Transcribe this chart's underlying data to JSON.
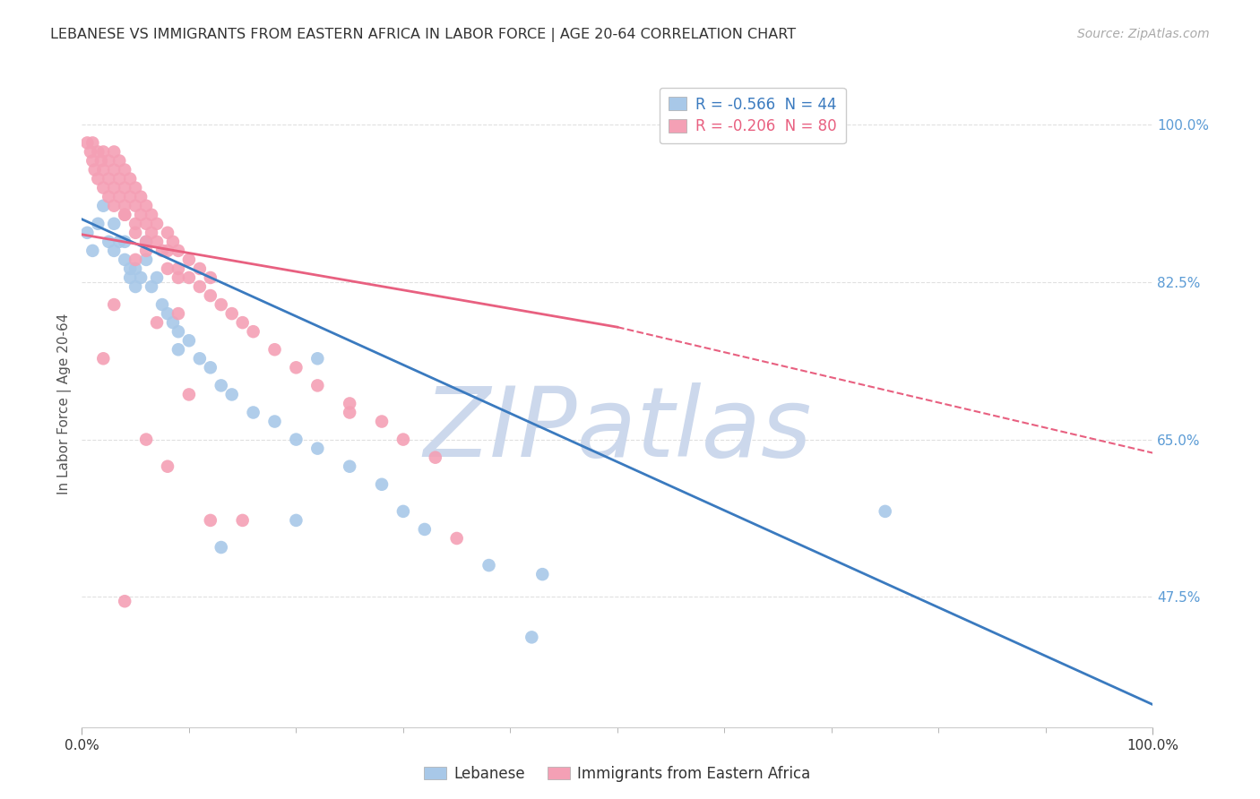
{
  "title": "LEBANESE VS IMMIGRANTS FROM EASTERN AFRICA IN LABOR FORCE | AGE 20-64 CORRELATION CHART",
  "source": "Source: ZipAtlas.com",
  "ylabel": "In Labor Force | Age 20-64",
  "x_range": [
    0.0,
    1.0
  ],
  "y_range": [
    0.33,
    1.05
  ],
  "y_ticks": [
    0.475,
    0.65,
    0.825,
    1.0
  ],
  "y_tick_labels": [
    "47.5%",
    "65.0%",
    "82.5%",
    "100.0%"
  ],
  "x_ticks": [
    0.0,
    1.0
  ],
  "x_tick_labels": [
    "0.0%",
    "100.0%"
  ],
  "series": [
    {
      "name": "Lebanese",
      "color": "#a8c8e8",
      "R": -0.566,
      "N": 44,
      "x": [
        0.005,
        0.01,
        0.015,
        0.02,
        0.025,
        0.03,
        0.03,
        0.035,
        0.04,
        0.04,
        0.045,
        0.045,
        0.05,
        0.05,
        0.055,
        0.06,
        0.06,
        0.065,
        0.07,
        0.075,
        0.08,
        0.085,
        0.09,
        0.09,
        0.1,
        0.11,
        0.12,
        0.13,
        0.14,
        0.16,
        0.18,
        0.2,
        0.22,
        0.25,
        0.28,
        0.3,
        0.32,
        0.22,
        0.38,
        0.43,
        0.13,
        0.2,
        0.75,
        0.42
      ],
      "y": [
        0.88,
        0.86,
        0.89,
        0.91,
        0.87,
        0.89,
        0.86,
        0.87,
        0.87,
        0.85,
        0.84,
        0.83,
        0.84,
        0.82,
        0.83,
        0.87,
        0.85,
        0.82,
        0.83,
        0.8,
        0.79,
        0.78,
        0.77,
        0.75,
        0.76,
        0.74,
        0.73,
        0.71,
        0.7,
        0.68,
        0.67,
        0.65,
        0.64,
        0.62,
        0.6,
        0.57,
        0.55,
        0.74,
        0.51,
        0.5,
        0.53,
        0.56,
        0.57,
        0.43
      ]
    },
    {
      "name": "Immigrants from Eastern Africa",
      "color": "#f4a0b5",
      "R": -0.206,
      "N": 80,
      "x": [
        0.005,
        0.008,
        0.01,
        0.01,
        0.012,
        0.015,
        0.015,
        0.018,
        0.02,
        0.02,
        0.02,
        0.025,
        0.025,
        0.025,
        0.03,
        0.03,
        0.03,
        0.03,
        0.035,
        0.035,
        0.035,
        0.04,
        0.04,
        0.04,
        0.04,
        0.045,
        0.045,
        0.05,
        0.05,
        0.05,
        0.05,
        0.055,
        0.055,
        0.06,
        0.06,
        0.06,
        0.065,
        0.065,
        0.07,
        0.07,
        0.075,
        0.08,
        0.08,
        0.08,
        0.085,
        0.09,
        0.09,
        0.09,
        0.1,
        0.1,
        0.11,
        0.11,
        0.12,
        0.12,
        0.13,
        0.14,
        0.15,
        0.16,
        0.18,
        0.2,
        0.22,
        0.25,
        0.28,
        0.3,
        0.33,
        0.08,
        0.06,
        0.12,
        0.25,
        0.35,
        0.04,
        0.03,
        0.02,
        0.05,
        0.07,
        0.1,
        0.15,
        0.04,
        0.09,
        0.06
      ],
      "y": [
        0.98,
        0.97,
        0.96,
        0.98,
        0.95,
        0.97,
        0.94,
        0.96,
        0.97,
        0.95,
        0.93,
        0.96,
        0.94,
        0.92,
        0.97,
        0.95,
        0.93,
        0.91,
        0.96,
        0.94,
        0.92,
        0.95,
        0.93,
        0.91,
        0.9,
        0.94,
        0.92,
        0.93,
        0.91,
        0.89,
        0.88,
        0.92,
        0.9,
        0.91,
        0.89,
        0.87,
        0.9,
        0.88,
        0.89,
        0.87,
        0.86,
        0.88,
        0.86,
        0.84,
        0.87,
        0.86,
        0.84,
        0.83,
        0.85,
        0.83,
        0.84,
        0.82,
        0.83,
        0.81,
        0.8,
        0.79,
        0.78,
        0.77,
        0.75,
        0.73,
        0.71,
        0.69,
        0.67,
        0.65,
        0.63,
        0.62,
        0.65,
        0.56,
        0.68,
        0.54,
        0.9,
        0.8,
        0.74,
        0.85,
        0.78,
        0.7,
        0.56,
        0.47,
        0.79,
        0.86
      ]
    }
  ],
  "blue_line_color": "#3a7abf",
  "pink_line_color": "#e86080",
  "blue_line_start_x": 0.0,
  "blue_line_start_y": 0.895,
  "blue_line_end_x": 1.0,
  "blue_line_end_y": 0.355,
  "pink_line_start_x": 0.0,
  "pink_line_start_y": 0.878,
  "pink_line_solid_end_x": 0.5,
  "pink_line_solid_end_y": 0.775,
  "pink_line_dashed_end_x": 1.0,
  "pink_line_dashed_end_y": 0.635,
  "watermark_text": "ZIPatlas",
  "watermark_color": "#ccd8ec",
  "background_color": "#ffffff",
  "grid_color": "#dddddd",
  "grid_linestyle": "--",
  "tick_color": "#5b9bd5",
  "title_fontsize": 11.5,
  "source_fontsize": 10,
  "ylabel_fontsize": 11,
  "tick_fontsize": 11,
  "legend_top_R1": "R = -0.566  N = 44",
  "legend_top_R2": "R = -0.206  N = 80",
  "legend_top_color1": "#3a7abf",
  "legend_top_color2": "#e86080",
  "legend_top_patch1": "#a8c8e8",
  "legend_top_patch2": "#f4a0b5"
}
